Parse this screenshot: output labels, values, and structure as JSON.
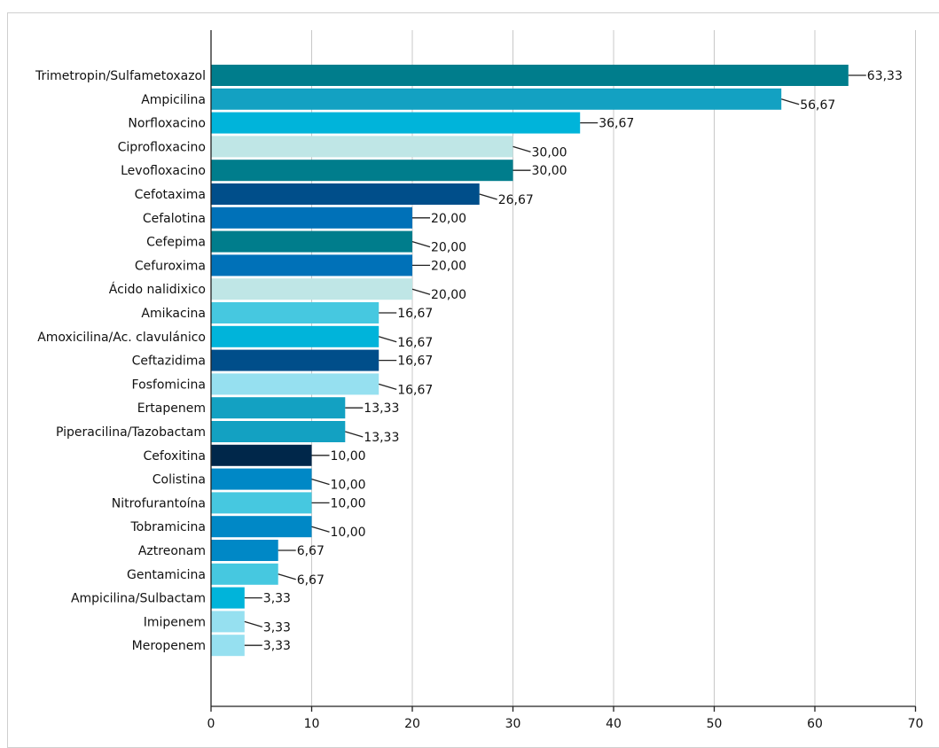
{
  "chart_data": {
    "type": "bar",
    "orientation": "horizontal",
    "title": "",
    "xlabel": "",
    "ylabel": "",
    "xlim": [
      0,
      70
    ],
    "xticks": [
      "0",
      "10",
      "20",
      "30",
      "40",
      "50",
      "60",
      "70"
    ],
    "grid": true,
    "categories": [
      "Trimetropin/Sulfametoxazol",
      "Ampicilina",
      "Norfloxacino",
      "Ciprofloxacino",
      "Levofloxacino",
      "Cefotaxima",
      "Cefalotina",
      "Cefepima",
      "Cefuroxima",
      "Ácido nalidixico",
      "Amikacina",
      "Amoxicilina/Ac. clavulánico",
      "Ceftazidima",
      "Fosfomicina",
      "Ertapenem",
      "Piperacilina/Tazobactam",
      "Cefoxitina",
      "Colistina",
      "Nitrofurantoína",
      "Tobramicina",
      "Aztreonam",
      "Gentamicina",
      "Ampicilina/Sulbactam",
      "Imipenem",
      "Meropenem"
    ],
    "values": [
      63.33,
      56.67,
      36.67,
      30.0,
      30.0,
      26.67,
      20.0,
      20.0,
      20.0,
      20.0,
      16.67,
      16.67,
      16.67,
      16.67,
      13.33,
      13.33,
      10.0,
      10.0,
      10.0,
      10.0,
      6.67,
      6.67,
      3.33,
      3.33,
      3.33
    ],
    "labels": [
      "63,33",
      "56,67",
      "36,67",
      "30,00",
      "30,00",
      "26,67",
      "20,00",
      "20,00",
      "20,00",
      "20,00",
      "16,67",
      "16,67",
      "16,67",
      "16,67",
      "13,33",
      "13,33",
      "10,00",
      "10,00",
      "10,00",
      "10,00",
      "6,67",
      "6,67",
      "3,33",
      "3,33",
      "3,33"
    ],
    "colors": [
      "#007d8c",
      "#13a1c2",
      "#00b4da",
      "#bfe6e6",
      "#007d8c",
      "#004e8a",
      "#0071b8",
      "#007d8c",
      "#0071b8",
      "#bfe6e6",
      "#46c8e0",
      "#00b4da",
      "#004e8a",
      "#96e0f0",
      "#13a1c2",
      "#13a1c2",
      "#00274a",
      "#0088c6",
      "#46c8e0",
      "#0088c6",
      "#0088c6",
      "#46c8e0",
      "#00b4da",
      "#96e0f0",
      "#96e0f0"
    ]
  }
}
